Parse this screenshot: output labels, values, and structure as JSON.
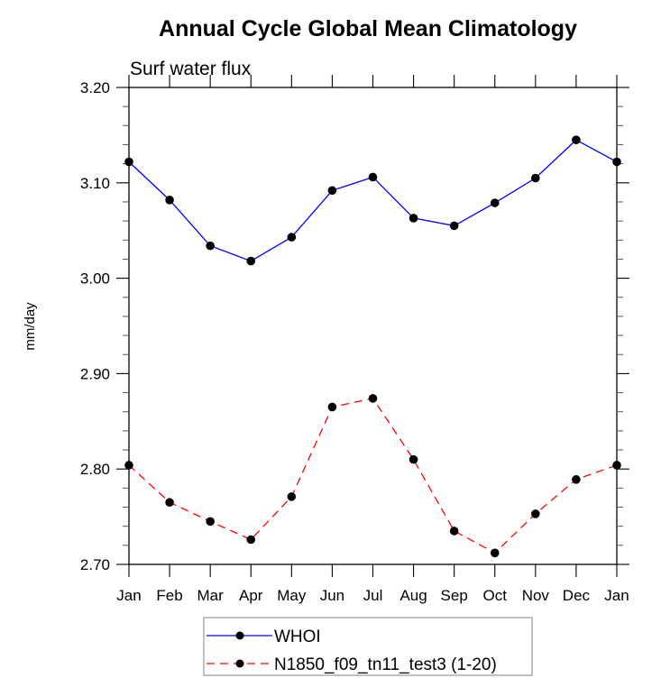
{
  "chart_data": {
    "type": "line",
    "title": "Annual Cycle Global Mean Climatology",
    "subtitle": "Surf water flux",
    "xlabel": "",
    "ylabel": "mm/day",
    "categories": [
      "Jan",
      "Feb",
      "Mar",
      "Apr",
      "May",
      "Jun",
      "Jul",
      "Aug",
      "Sep",
      "Oct",
      "Nov",
      "Dec",
      "Jan"
    ],
    "ylim": [
      2.7,
      3.2
    ],
    "yticks": [
      "2.70",
      "2.80",
      "2.90",
      "3.00",
      "3.10",
      "3.20"
    ],
    "ytick_values": [
      2.7,
      2.8,
      2.9,
      3.0,
      3.1,
      3.2
    ],
    "yminor_step": 0.02,
    "grid": false,
    "legend_position": "bottom-center",
    "series": [
      {
        "name": "WHOI",
        "color": "#0000ff",
        "line_style": "solid",
        "marker": "filled-circle",
        "values": [
          3.122,
          3.082,
          3.034,
          3.018,
          3.043,
          3.092,
          3.106,
          3.063,
          3.055,
          3.079,
          3.105,
          3.145,
          3.122
        ]
      },
      {
        "name": "N1850_f09_tn11_test3 (1-20)",
        "color": "#ff0000",
        "line_style": "dashed",
        "marker": "filled-circle",
        "values": [
          2.804,
          2.765,
          2.745,
          2.726,
          2.771,
          2.865,
          2.874,
          2.81,
          2.735,
          2.712,
          2.753,
          2.789,
          2.804
        ]
      }
    ]
  }
}
